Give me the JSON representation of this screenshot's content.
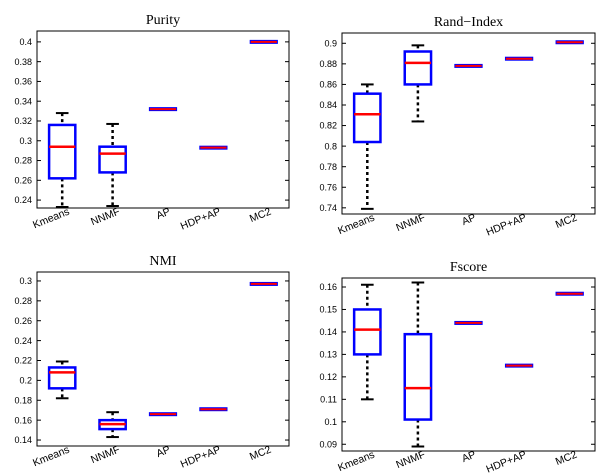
{
  "colors": {
    "box": "#0000ff",
    "median": "#ff0000",
    "whisker": "#000000",
    "axes": "#000000"
  },
  "chart_data": [
    {
      "type": "box",
      "title": "Purity",
      "categories": [
        "Kmeans",
        "NNMF",
        "AP",
        "HDP+AP",
        "MC2"
      ],
      "ylim": [
        0.232,
        0.411
      ],
      "yticks": [
        "0.24",
        "0.26",
        "0.28",
        "0.3",
        "0.32",
        "0.34",
        "0.36",
        "0.38",
        "0.4"
      ],
      "grid": false,
      "boxes": [
        {
          "lower_whisker": 0.233,
          "q1": 0.262,
          "median": 0.294,
          "q3": 0.316,
          "upper_whisker": 0.328
        },
        {
          "lower_whisker": 0.234,
          "q1": 0.268,
          "median": 0.287,
          "q3": 0.294,
          "upper_whisker": 0.317
        },
        {
          "lower_whisker": 0.332,
          "q1": 0.332,
          "median": 0.332,
          "q3": 0.332,
          "upper_whisker": 0.332
        },
        {
          "lower_whisker": 0.293,
          "q1": 0.293,
          "median": 0.293,
          "q3": 0.293,
          "upper_whisker": 0.293
        },
        {
          "lower_whisker": 0.4,
          "q1": 0.4,
          "median": 0.4,
          "q3": 0.4,
          "upper_whisker": 0.4
        }
      ]
    },
    {
      "type": "box",
      "title": "Rand−Index",
      "categories": [
        "Kmeans",
        "NNMF",
        "AP",
        "HDP+AP",
        "MC2"
      ],
      "ylim": [
        0.734,
        0.91
      ],
      "yticks": [
        "0.74",
        "0.76",
        "0.78",
        "0.8",
        "0.82",
        "0.84",
        "0.86",
        "0.88",
        "0.9"
      ],
      "grid": false,
      "boxes": [
        {
          "lower_whisker": 0.739,
          "q1": 0.804,
          "median": 0.831,
          "q3": 0.851,
          "upper_whisker": 0.86
        },
        {
          "lower_whisker": 0.824,
          "q1": 0.86,
          "median": 0.881,
          "q3": 0.892,
          "upper_whisker": 0.898
        },
        {
          "lower_whisker": 0.878,
          "q1": 0.878,
          "median": 0.878,
          "q3": 0.878,
          "upper_whisker": 0.878
        },
        {
          "lower_whisker": 0.885,
          "q1": 0.885,
          "median": 0.885,
          "q3": 0.885,
          "upper_whisker": 0.885
        },
        {
          "lower_whisker": 0.901,
          "q1": 0.901,
          "median": 0.901,
          "q3": 0.901,
          "upper_whisker": 0.901
        }
      ]
    },
    {
      "type": "box",
      "title": "NMI",
      "categories": [
        "Kmeans",
        "NNMF",
        "AP",
        "HDP+AP",
        "MC2"
      ],
      "ylim": [
        0.134,
        0.309
      ],
      "yticks": [
        "0.14",
        "0.16",
        "0.18",
        "0.2",
        "0.22",
        "0.24",
        "0.26",
        "0.28",
        "0.3"
      ],
      "grid": false,
      "boxes": [
        {
          "lower_whisker": 0.182,
          "q1": 0.192,
          "median": 0.208,
          "q3": 0.213,
          "upper_whisker": 0.219
        },
        {
          "lower_whisker": 0.143,
          "q1": 0.151,
          "median": 0.156,
          "q3": 0.16,
          "upper_whisker": 0.168
        },
        {
          "lower_whisker": 0.166,
          "q1": 0.166,
          "median": 0.166,
          "q3": 0.166,
          "upper_whisker": 0.166
        },
        {
          "lower_whisker": 0.171,
          "q1": 0.171,
          "median": 0.171,
          "q3": 0.171,
          "upper_whisker": 0.171
        },
        {
          "lower_whisker": 0.297,
          "q1": 0.297,
          "median": 0.297,
          "q3": 0.297,
          "upper_whisker": 0.297
        }
      ]
    },
    {
      "type": "box",
      "title": "Fscore",
      "categories": [
        "Kmeans",
        "NNMF",
        "AP",
        "HDP+AP",
        "MC2"
      ],
      "ylim": [
        0.087,
        0.164
      ],
      "yticks": [
        "0.09",
        "0.1",
        "0.11",
        "0.12",
        "0.13",
        "0.14",
        "0.15",
        "0.16"
      ],
      "grid": false,
      "boxes": [
        {
          "lower_whisker": 0.11,
          "q1": 0.13,
          "median": 0.141,
          "q3": 0.15,
          "upper_whisker": 0.161
        },
        {
          "lower_whisker": 0.089,
          "q1": 0.101,
          "median": 0.115,
          "q3": 0.139,
          "upper_whisker": 0.162
        },
        {
          "lower_whisker": 0.144,
          "q1": 0.144,
          "median": 0.144,
          "q3": 0.144,
          "upper_whisker": 0.144
        },
        {
          "lower_whisker": 0.125,
          "q1": 0.125,
          "median": 0.125,
          "q3": 0.125,
          "upper_whisker": 0.125
        },
        {
          "lower_whisker": 0.157,
          "q1": 0.157,
          "median": 0.157,
          "q3": 0.157,
          "upper_whisker": 0.157
        }
      ]
    }
  ]
}
